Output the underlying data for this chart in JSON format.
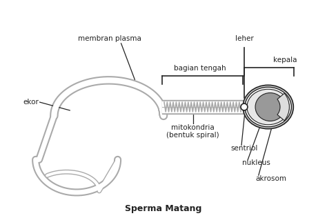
{
  "title": "Sperma Matang",
  "bg_color": "#ffffff",
  "outline_color": "#aaaaaa",
  "dark_color": "#222222",
  "mid_color": "#888888",
  "labels": {
    "membran_plasma": "membran plasma",
    "ekor": "ekor",
    "bagian_tengah": "bagian tengah",
    "leher": "leher",
    "kepala": "kepala",
    "mitokondria": "mitokondria\n(bentuk spiral)",
    "sentriol": "sentriol",
    "nukleus": "nukleus",
    "akrosom": "akrosom"
  },
  "label_fontsize": 7.5,
  "title_fontsize": 9
}
